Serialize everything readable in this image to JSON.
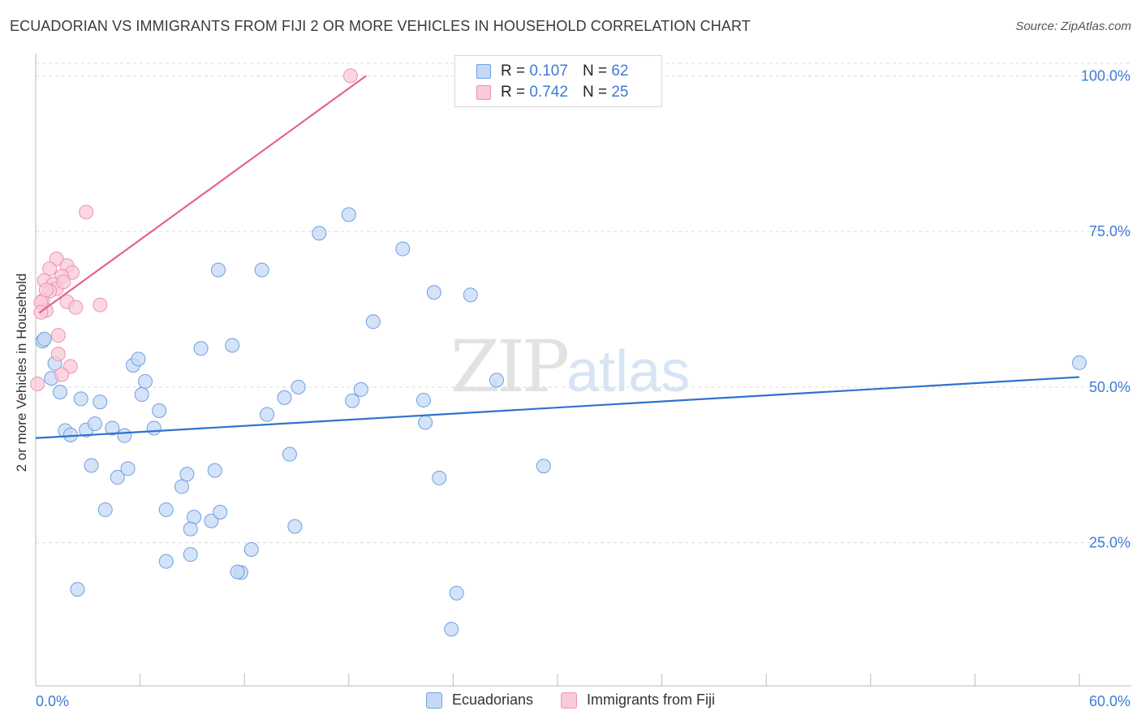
{
  "header": {
    "title": "ECUADORIAN VS IMMIGRANTS FROM FIJI 2 OR MORE VEHICLES IN HOUSEHOLD CORRELATION CHART",
    "source": "Source: ZipAtlas.com"
  },
  "watermark": {
    "zip": "ZIP",
    "atlas": "atlas"
  },
  "legend": {
    "r_label": "R =",
    "n_label": "N =",
    "series": [
      {
        "r": "0.107",
        "n": "62"
      },
      {
        "r": "0.742",
        "n": "25"
      }
    ]
  },
  "chart_data": {
    "type": "scatter",
    "title": "ECUADORIAN VS IMMIGRANTS FROM FIJI 2 OR MORE VEHICLES IN HOUSEHOLD CORRELATION CHART",
    "ylabel": "2 or more Vehicles in Household",
    "x_tick_labels": [
      "0.0%",
      "60.0%"
    ],
    "y_tick_labels": [
      "100.0%",
      "75.0%",
      "50.0%",
      "25.0%"
    ],
    "xlim": [
      0,
      60
    ],
    "ylim": [
      2,
      102
    ],
    "y_ticks": [
      100,
      75,
      50,
      25
    ],
    "grid": true,
    "legend_position": "top-center",
    "colors": {
      "ecuadorians_fill": "#c5d9f5",
      "ecuadorians_stroke": "#6f9fe0",
      "ecuadorians_line": "#2f72cf",
      "fiji_fill": "#f9cad8",
      "fiji_stroke": "#ee93b0",
      "fiji_line": "#e4638c",
      "tick_text": "#3d7bd6"
    },
    "series": [
      {
        "name": "Ecuadorians",
        "trend": [
          [
            0,
            41.8
          ],
          [
            60,
            51.6
          ]
        ],
        "points": [
          [
            0.4,
            57.4
          ],
          [
            0.5,
            57.7
          ],
          [
            1.1,
            53.8
          ],
          [
            0.9,
            51.4
          ],
          [
            1.4,
            49.2
          ],
          [
            2.6,
            48.1
          ],
          [
            3.7,
            47.6
          ],
          [
            1.7,
            43.0
          ],
          [
            2.0,
            42.3
          ],
          [
            2.9,
            43.1
          ],
          [
            3.4,
            44.1
          ],
          [
            4.4,
            43.4
          ],
          [
            5.1,
            42.2
          ],
          [
            5.6,
            53.5
          ],
          [
            5.9,
            54.5
          ],
          [
            6.3,
            50.9
          ],
          [
            6.1,
            48.8
          ],
          [
            7.1,
            46.2
          ],
          [
            6.8,
            43.4
          ],
          [
            9.5,
            56.2
          ],
          [
            10.5,
            68.8
          ],
          [
            11.3,
            56.7
          ],
          [
            13.3,
            45.6
          ],
          [
            13.0,
            68.8
          ],
          [
            14.3,
            48.3
          ],
          [
            15.1,
            50.0
          ],
          [
            16.3,
            74.7
          ],
          [
            18.2,
            47.8
          ],
          [
            18.7,
            49.6
          ],
          [
            18.0,
            77.7
          ],
          [
            19.4,
            60.5
          ],
          [
            21.1,
            72.2
          ],
          [
            22.3,
            47.9
          ],
          [
            22.4,
            44.3
          ],
          [
            22.9,
            65.2
          ],
          [
            23.2,
            35.4
          ],
          [
            25.0,
            64.8
          ],
          [
            26.5,
            51.1
          ],
          [
            29.2,
            37.3
          ],
          [
            3.2,
            37.4
          ],
          [
            4.7,
            35.5
          ],
          [
            5.3,
            36.9
          ],
          [
            8.4,
            34.0
          ],
          [
            8.7,
            36.0
          ],
          [
            10.3,
            36.6
          ],
          [
            14.6,
            39.2
          ],
          [
            4.0,
            30.3
          ],
          [
            7.5,
            30.3
          ],
          [
            9.1,
            29.1
          ],
          [
            8.9,
            27.2
          ],
          [
            10.1,
            28.5
          ],
          [
            10.6,
            29.9
          ],
          [
            14.9,
            27.6
          ],
          [
            7.5,
            22.0
          ],
          [
            8.9,
            23.1
          ],
          [
            12.4,
            23.9
          ],
          [
            11.8,
            20.2
          ],
          [
            11.6,
            20.3
          ],
          [
            2.4,
            17.5
          ],
          [
            24.2,
            16.9
          ],
          [
            23.9,
            11.1
          ],
          [
            60.0,
            53.9
          ]
        ]
      },
      {
        "name": "Immigrants from Fiji",
        "trend": [
          [
            0.2,
            61.9
          ],
          [
            19.0,
            100.0
          ]
        ],
        "points": [
          [
            18.1,
            100.0
          ],
          [
            2.9,
            78.1
          ],
          [
            1.2,
            70.6
          ],
          [
            1.8,
            69.5
          ],
          [
            0.8,
            69.0
          ],
          [
            2.1,
            68.4
          ],
          [
            0.5,
            67.1
          ],
          [
            1.5,
            67.8
          ],
          [
            1.0,
            66.5
          ],
          [
            1.2,
            65.8
          ],
          [
            0.8,
            65.4
          ],
          [
            0.4,
            63.9
          ],
          [
            1.8,
            63.7
          ],
          [
            2.3,
            62.8
          ],
          [
            3.7,
            63.2
          ],
          [
            0.6,
            62.3
          ],
          [
            0.3,
            63.6
          ],
          [
            0.3,
            62.0
          ],
          [
            1.3,
            58.3
          ],
          [
            1.3,
            55.3
          ],
          [
            2.0,
            53.3
          ],
          [
            1.5,
            52.0
          ],
          [
            0.1,
            50.5
          ],
          [
            0.6,
            65.6
          ],
          [
            1.6,
            66.9
          ]
        ]
      }
    ]
  }
}
